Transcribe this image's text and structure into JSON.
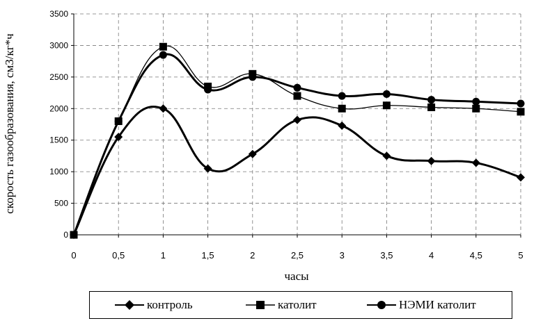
{
  "chart_data": {
    "type": "line",
    "xlabel": "часы",
    "ylabel": "скорость газообразования, см3/кг*ч",
    "x": [
      "0",
      "0,5",
      "1",
      "1,5",
      "2",
      "2,5",
      "3",
      "3,5",
      "4",
      "4,5",
      "5"
    ],
    "yticks": [
      "0",
      "500",
      "1000",
      "1500",
      "2000",
      "2500",
      "3000",
      "3500"
    ],
    "ylim": [
      0,
      3500
    ],
    "grid": true,
    "legend_position": "bottom",
    "series": [
      {
        "name": "контроль",
        "marker": "diamond",
        "values": [
          0,
          1550,
          2000,
          1050,
          1280,
          1820,
          1730,
          1250,
          1170,
          1140,
          910
        ]
      },
      {
        "name": "католит",
        "marker": "square",
        "values": [
          0,
          1800,
          2980,
          2350,
          2550,
          2200,
          2000,
          2050,
          2020,
          2000,
          1950
        ]
      },
      {
        "name": "НЭМИ католит",
        "marker": "circle",
        "values": [
          0,
          1800,
          2850,
          2300,
          2500,
          2330,
          2200,
          2230,
          2140,
          2110,
          2080
        ]
      }
    ]
  }
}
